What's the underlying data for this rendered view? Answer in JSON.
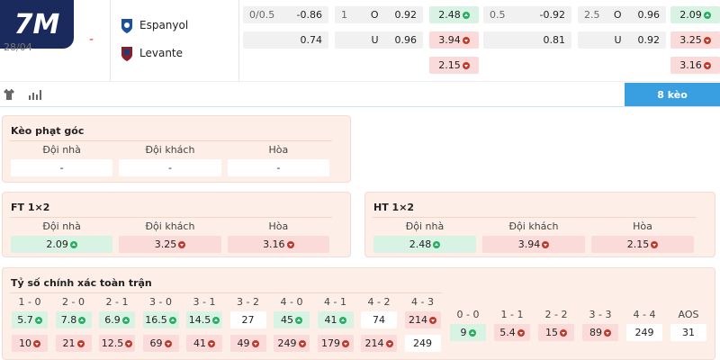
{
  "logo": "7M",
  "match": {
    "date": "28/04",
    "score": "-",
    "home": "Espanyol",
    "away": "Levante"
  },
  "top_odds": {
    "rows": [
      [
        {
          "line": "0/0.5",
          "value": "-0.86"
        },
        {
          "line": "1",
          "side": "O",
          "value": "0.92"
        },
        {
          "value": "2.48",
          "trend": "up"
        },
        {
          "line": "0.5",
          "value": "-0.92"
        },
        {
          "line": "2.5",
          "side": "O",
          "value": "0.96"
        },
        {
          "value": "2.09",
          "trend": "up"
        }
      ],
      [
        {
          "value": "0.74"
        },
        {
          "side": "U",
          "value": "0.96"
        },
        {
          "value": "3.94",
          "trend": "down"
        },
        {
          "value": "0.81"
        },
        {
          "side": "U",
          "value": "0.92"
        },
        {
          "value": "3.25",
          "trend": "down"
        }
      ],
      [
        null,
        null,
        {
          "value": "2.15",
          "trend": "down"
        },
        null,
        null,
        {
          "value": "3.16",
          "trend": "down"
        }
      ]
    ]
  },
  "tab": "8 kèo",
  "corner": {
    "title": "Kèo phạt góc",
    "headers": [
      "Đội nhà",
      "Đội khách",
      "Hòa"
    ],
    "cells": [
      {
        "value": "-"
      },
      {
        "value": "-"
      },
      {
        "value": "-"
      }
    ]
  },
  "ft": {
    "title": "FT 1×2",
    "headers": [
      "Đội nhà",
      "Đội khách",
      "Hòa"
    ],
    "cells": [
      {
        "value": "2.09",
        "trend": "up"
      },
      {
        "value": "3.25",
        "trend": "down"
      },
      {
        "value": "3.16",
        "trend": "down"
      }
    ]
  },
  "ht": {
    "title": "HT 1×2",
    "headers": [
      "Đội nhà",
      "Đội khách",
      "Hòa"
    ],
    "cells": [
      {
        "value": "2.48",
        "trend": "up"
      },
      {
        "value": "3.94",
        "trend": "down"
      },
      {
        "value": "2.15",
        "trend": "down"
      }
    ]
  },
  "correct_score": {
    "title": "Tỷ số chính xác toàn trận",
    "groups": [
      {
        "labels": [
          "1 - 0",
          "2 - 0",
          "2 - 1",
          "3 - 0",
          "3 - 1",
          "3 - 2",
          "4 - 0",
          "4 - 1",
          "4 - 2",
          "4 - 3"
        ],
        "rows": [
          [
            {
              "value": "5.7",
              "trend": "up"
            },
            {
              "value": "7.8",
              "trend": "up"
            },
            {
              "value": "6.9",
              "trend": "up"
            },
            {
              "value": "16.5",
              "trend": "up"
            },
            {
              "value": "14.5",
              "trend": "up"
            },
            {
              "value": "27"
            },
            {
              "value": "45",
              "trend": "up"
            },
            {
              "value": "41",
              "trend": "up"
            },
            {
              "value": "74"
            },
            {
              "value": "214",
              "trend": "down"
            }
          ],
          [
            {
              "value": "10",
              "trend": "down"
            },
            {
              "value": "21",
              "trend": "down"
            },
            {
              "value": "12.5",
              "trend": "down"
            },
            {
              "value": "69",
              "trend": "down"
            },
            {
              "value": "41",
              "trend": "down"
            },
            {
              "value": "49",
              "trend": "down"
            },
            {
              "value": "249",
              "trend": "down"
            },
            {
              "value": "179",
              "trend": "down"
            },
            {
              "value": "214",
              "trend": "down"
            },
            {
              "value": "249"
            }
          ]
        ]
      },
      {
        "labels": [
          "0 - 0",
          "1 - 1",
          "2 - 2",
          "3 - 3",
          "4 - 4",
          "AOS"
        ],
        "rows": [
          [
            {
              "value": "9",
              "trend": "up"
            },
            {
              "value": "5.4",
              "trend": "down"
            },
            {
              "value": "15",
              "trend": "down"
            },
            {
              "value": "89",
              "trend": "down"
            },
            {
              "value": "249"
            },
            {
              "value": "31"
            }
          ]
        ]
      }
    ]
  }
}
